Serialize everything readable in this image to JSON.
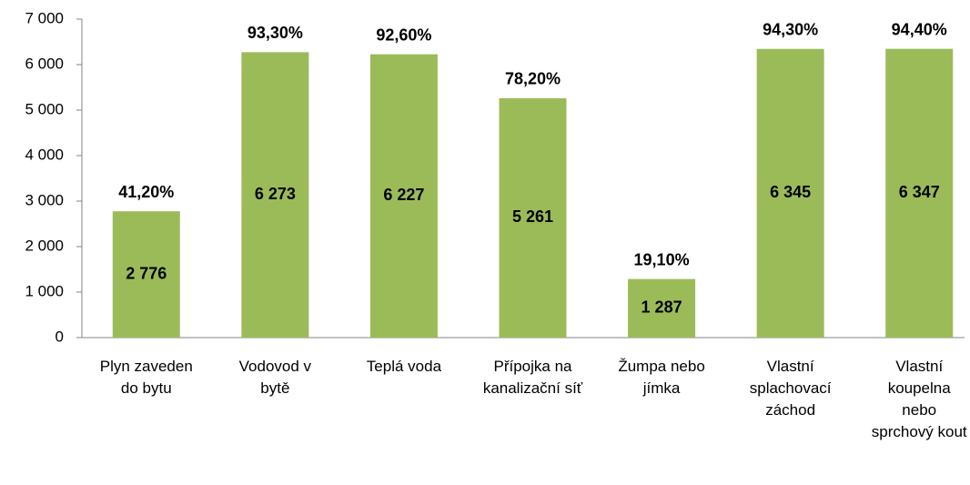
{
  "chart_data": {
    "type": "bar",
    "categories": [
      "Plyn zaveden do bytu",
      "Vodovod v bytě",
      "Teplá voda",
      "Přípojka na kanalizační síť",
      "Žumpa nebo jímka",
      "Vlastní splachovací záchod",
      "Vlastní koupelna nebo sprchový kout"
    ],
    "values": [
      2776,
      6273,
      6227,
      5261,
      1287,
      6345,
      6347
    ],
    "value_labels": [
      "2 776",
      "6 273",
      "6 227",
      "5 261",
      "1 287",
      "6 345",
      "6 347"
    ],
    "percent_labels": [
      "41,20%",
      "93,30%",
      "92,60%",
      "78,20%",
      "19,10%",
      "94,30%",
      "94,40%"
    ],
    "color": "#9bbb59",
    "ylim": [
      0,
      7000
    ],
    "yticks": [
      0,
      {
        "value": 1000,
        "label": "1 000"
      },
      {
        "value": 2000,
        "label": "2 000"
      },
      {
        "value": 3000,
        "label": "3 000"
      },
      {
        "value": 4000,
        "label": "4 000"
      },
      {
        "value": 5000,
        "label": "5 000"
      },
      {
        "value": 6000,
        "label": "6 000"
      },
      {
        "value": 7000,
        "label": "7 000"
      }
    ]
  }
}
